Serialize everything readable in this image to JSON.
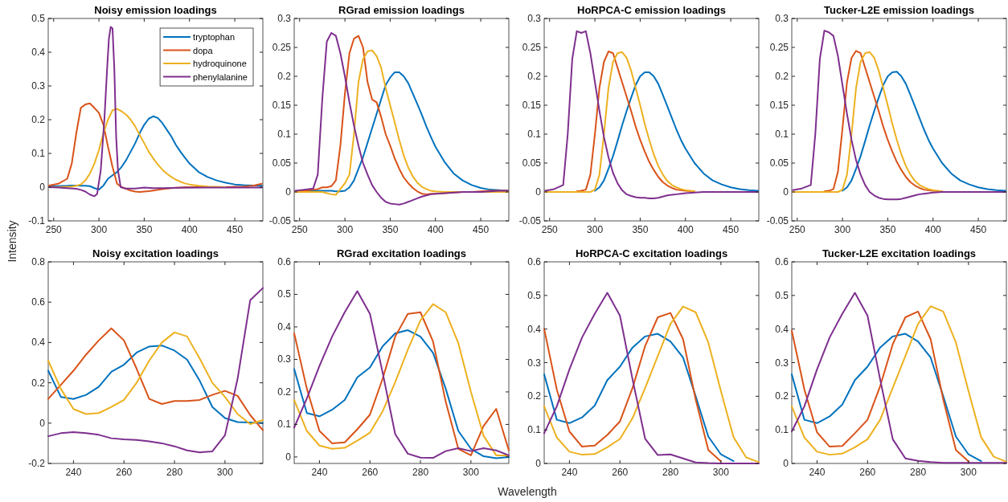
{
  "chart_data": [
    {
      "type": "line",
      "title": "Noisy emission loadings",
      "ylabel": "Intensity",
      "legend": "top right",
      "xlim": [
        244,
        481
      ],
      "xticks": [
        250,
        300,
        350,
        400,
        450
      ],
      "ylim": [
        -0.1,
        0.5
      ],
      "yticks": [
        -0.1,
        0,
        0.1,
        0.2,
        0.3,
        0.4,
        0.5
      ],
      "x": [
        245,
        255,
        265,
        270,
        275,
        280,
        285,
        290,
        295,
        300,
        305,
        310,
        315,
        320,
        325,
        330,
        335,
        340,
        345,
        350,
        355,
        360,
        365,
        370,
        375,
        380,
        385,
        390,
        395,
        400,
        410,
        420,
        430,
        440,
        450,
        460,
        470,
        480
      ],
      "series": [
        {
          "name": "tryptophan",
          "color": "#0072bd",
          "values": [
            0.002,
            0.003,
            0.004,
            0.005,
            0.005,
            0.004,
            0.004,
            0.003,
            -0.003,
            -0.007,
            0.005,
            0.025,
            0.035,
            0.045,
            0.06,
            0.08,
            0.105,
            0.13,
            0.16,
            0.185,
            0.203,
            0.21,
            0.205,
            0.19,
            0.17,
            0.15,
            0.125,
            0.105,
            0.087,
            0.07,
            0.045,
            0.03,
            0.02,
            0.013,
            0.008,
            0.006,
            0.005,
            0.004
          ]
        },
        {
          "name": "dopa",
          "color": "#d95319",
          "values": [
            0.005,
            0.01,
            0.025,
            0.07,
            0.16,
            0.235,
            0.245,
            0.248,
            0.235,
            0.22,
            0.185,
            0.12,
            0.06,
            0.01,
            0,
            -0.005,
            -0.01,
            -0.013,
            -0.014,
            -0.013,
            -0.012,
            -0.01,
            -0.008,
            -0.006,
            -0.004,
            -0.003,
            -0.002,
            -0.001,
            0,
            0,
            0,
            0,
            0,
            0,
            0.001,
            0.002,
            0.004,
            0.01
          ]
        },
        {
          "name": "hydroquinone",
          "color": "#edb120",
          "values": [
            0,
            0,
            0.001,
            0.002,
            0.004,
            0.008,
            0.02,
            0.04,
            0.07,
            0.11,
            0.16,
            0.2,
            0.228,
            0.232,
            0.225,
            0.215,
            0.2,
            0.18,
            0.155,
            0.13,
            0.105,
            0.085,
            0.067,
            0.052,
            0.04,
            0.03,
            0.022,
            0.016,
            0.011,
            0.008,
            0.004,
            0.002,
            0.001,
            0,
            null,
            null,
            null,
            null
          ]
        },
        {
          "name": "phenylalanine",
          "color": "#7e2f8e",
          "x": [
            245,
            255,
            265,
            275,
            280,
            285,
            290,
            295,
            298,
            302,
            306,
            309,
            311,
            313,
            315,
            317,
            319,
            321,
            324,
            330,
            340,
            350,
            360,
            370,
            390,
            420,
            450,
            480
          ],
          "values": [
            0,
            -0.001,
            -0.003,
            -0.005,
            -0.008,
            -0.013,
            -0.022,
            -0.027,
            -0.02,
            0.05,
            0.2,
            0.35,
            0.44,
            0.475,
            0.47,
            0.35,
            0.15,
            0.05,
            0,
            -0.004,
            -0.004,
            -0.001,
            -0.003,
            -0.003,
            -0.002,
            -0.001,
            -0.001,
            -0.001
          ]
        }
      ]
    },
    {
      "type": "line",
      "title": "RGrad emission loadings",
      "xlim": [
        244,
        481
      ],
      "xticks": [
        250,
        300,
        350,
        400,
        450
      ],
      "ylim": [
        -0.05,
        0.3
      ],
      "yticks": [
        -0.05,
        0,
        0.05,
        0.1,
        0.15,
        0.2,
        0.25,
        0.3
      ],
      "x": [
        245,
        255,
        265,
        270,
        275,
        280,
        285,
        290,
        295,
        300,
        305,
        310,
        315,
        320,
        325,
        330,
        335,
        340,
        345,
        350,
        355,
        360,
        365,
        370,
        375,
        380,
        385,
        390,
        395,
        400,
        410,
        420,
        430,
        440,
        450,
        460,
        470,
        480
      ],
      "series": [
        {
          "color": "#0072bd",
          "values": [
            0.001,
            0.002,
            0.002,
            0.002,
            0.002,
            0.002,
            0.002,
            0.001,
            0.001,
            0.002,
            0.008,
            0.02,
            0.04,
            0.06,
            0.085,
            0.11,
            0.135,
            0.16,
            0.185,
            0.198,
            0.207,
            0.207,
            0.2,
            0.188,
            0.17,
            0.152,
            0.133,
            0.113,
            0.095,
            0.078,
            0.052,
            0.032,
            0.02,
            0.012,
            0.007,
            0.004,
            0.003,
            0.002
          ]
        },
        {
          "color": "#d95319",
          "values": [
            0.001,
            0.002,
            0.004,
            0.005,
            0.008,
            0.008,
            0.01,
            0.02,
            0.08,
            0.17,
            0.24,
            0.265,
            0.27,
            0.25,
            0.19,
            0.16,
            0.155,
            0.13,
            0.1,
            0.08,
            0.058,
            0.04,
            0.025,
            0.015,
            0.007,
            0.001,
            -0.003,
            -0.004,
            -0.003,
            -0.003,
            -0.002,
            -0.001,
            0,
            0,
            0.001,
            0.002,
            0.002,
            0.002
          ]
        },
        {
          "color": "#edb120",
          "values": [
            0,
            0,
            0,
            0,
            0,
            -0.002,
            -0.004,
            -0.005,
            0.005,
            0.015,
            0.03,
            0.1,
            0.19,
            0.23,
            0.243,
            0.245,
            0.235,
            0.215,
            0.18,
            0.15,
            0.12,
            0.09,
            0.063,
            0.042,
            0.027,
            0.016,
            0.009,
            0.005,
            0.002,
            0.001,
            0,
            0,
            0,
            0,
            0,
            0,
            0,
            0
          ]
        },
        {
          "color": "#7e2f8e",
          "values": [
            0.002,
            0.004,
            0.006,
            0.03,
            0.16,
            0.26,
            0.275,
            0.27,
            0.24,
            0.2,
            0.155,
            0.115,
            0.08,
            0.05,
            0.03,
            0.012,
            0,
            -0.01,
            -0.017,
            -0.02,
            -0.021,
            -0.022,
            -0.02,
            -0.017,
            -0.014,
            -0.011,
            -0.008,
            -0.006,
            -0.004,
            -0.003,
            -0.002,
            -0.001,
            0,
            0,
            0,
            0.001,
            0.002,
            0.002
          ]
        }
      ]
    },
    {
      "type": "line",
      "title": "HoRPCA-C emission loadings",
      "xlim": [
        244,
        481
      ],
      "xticks": [
        250,
        300,
        350,
        400,
        450
      ],
      "ylim": [
        -0.05,
        0.3
      ],
      "yticks": [
        -0.05,
        0,
        0.05,
        0.1,
        0.15,
        0.2,
        0.25,
        0.3
      ],
      "x": [
        245,
        255,
        265,
        270,
        275,
        280,
        285,
        290,
        295,
        300,
        305,
        310,
        315,
        320,
        325,
        330,
        335,
        340,
        345,
        350,
        355,
        360,
        365,
        370,
        375,
        380,
        385,
        390,
        395,
        400,
        410,
        420,
        430,
        440,
        450,
        460,
        470,
        480
      ],
      "series": [
        {
          "color": "#0072bd",
          "values": [
            null,
            null,
            null,
            null,
            null,
            null,
            null,
            null,
            null,
            0.002,
            0.008,
            0.02,
            0.04,
            0.062,
            0.088,
            0.115,
            0.14,
            0.163,
            0.185,
            0.2,
            0.207,
            0.207,
            0.2,
            0.187,
            0.168,
            0.148,
            0.128,
            0.108,
            0.09,
            0.075,
            0.05,
            0.032,
            0.02,
            0.013,
            0.008,
            0.005,
            0.003,
            0.002
          ]
        },
        {
          "color": "#d95319",
          "values": [
            null,
            null,
            null,
            null,
            null,
            0.001,
            0.002,
            0.004,
            0.03,
            0.1,
            0.18,
            0.225,
            0.243,
            0.24,
            0.215,
            0.19,
            0.165,
            0.14,
            0.113,
            0.09,
            0.07,
            0.052,
            0.038,
            0.026,
            0.017,
            0.011,
            0.007,
            0.004,
            0.003,
            0.002,
            0.001,
            null,
            null,
            null,
            null,
            null,
            null,
            null
          ]
        },
        {
          "color": "#edb120",
          "values": [
            0,
            0,
            0,
            0,
            0,
            0,
            0,
            0,
            0,
            0.004,
            0.03,
            0.1,
            0.18,
            0.225,
            0.24,
            0.242,
            0.232,
            0.21,
            0.18,
            0.15,
            0.118,
            0.09,
            0.065,
            0.045,
            0.03,
            0.019,
            0.012,
            0.008,
            0.005,
            0.003,
            0.001,
            null,
            null,
            null,
            null,
            null,
            null,
            null
          ]
        },
        {
          "color": "#7e2f8e",
          "values": [
            0.002,
            0.005,
            0.012,
            0.1,
            0.23,
            0.278,
            0.275,
            0.278,
            0.24,
            0.19,
            0.14,
            0.095,
            0.06,
            0.033,
            0.015,
            0.003,
            -0.004,
            -0.007,
            -0.009,
            -0.01,
            -0.01,
            -0.011,
            -0.011,
            -0.01,
            -0.008,
            -0.006,
            -0.005,
            -0.004,
            -0.003,
            -0.002,
            -0.001,
            0,
            0,
            0,
            0,
            0,
            0,
            0
          ]
        }
      ]
    },
    {
      "type": "line",
      "title": "Tucker-L2E emission loadings",
      "xlim": [
        244,
        481
      ],
      "xticks": [
        250,
        300,
        350,
        400,
        450
      ],
      "ylim": [
        -0.05,
        0.3
      ],
      "yticks": [
        -0.05,
        0,
        0.05,
        0.1,
        0.15,
        0.2,
        0.25,
        0.3
      ],
      "x": [
        245,
        255,
        265,
        270,
        275,
        280,
        285,
        290,
        295,
        300,
        305,
        310,
        315,
        320,
        325,
        330,
        335,
        340,
        345,
        350,
        355,
        360,
        365,
        370,
        375,
        380,
        385,
        390,
        395,
        400,
        410,
        420,
        430,
        440,
        450,
        460,
        470,
        480
      ],
      "series": [
        {
          "color": "#0072bd",
          "values": [
            null,
            null,
            null,
            null,
            null,
            null,
            null,
            null,
            null,
            0.002,
            0.008,
            0.02,
            0.04,
            0.062,
            0.088,
            0.115,
            0.14,
            0.163,
            0.185,
            0.2,
            0.207,
            0.208,
            0.2,
            0.187,
            0.168,
            0.148,
            0.128,
            0.108,
            0.09,
            0.075,
            0.05,
            0.032,
            0.02,
            0.013,
            0.008,
            0.005,
            0.003,
            0.002
          ]
        },
        {
          "color": "#d95319",
          "values": [
            null,
            null,
            null,
            null,
            null,
            0.001,
            0.002,
            0.005,
            0.035,
            0.11,
            0.19,
            0.232,
            0.244,
            0.24,
            0.215,
            0.19,
            0.165,
            0.14,
            0.113,
            0.09,
            0.07,
            0.052,
            0.038,
            0.026,
            0.017,
            0.011,
            0.007,
            0.004,
            0.003,
            0.002,
            0.001,
            null,
            null,
            null,
            null,
            null,
            null,
            null
          ]
        },
        {
          "color": "#edb120",
          "values": [
            0,
            0,
            0,
            0,
            0,
            0,
            0,
            0,
            0,
            0.004,
            0.03,
            0.1,
            0.18,
            0.225,
            0.24,
            0.242,
            0.232,
            0.21,
            0.18,
            0.15,
            0.118,
            0.09,
            0.065,
            0.045,
            0.03,
            0.019,
            0.012,
            0.008,
            0.005,
            0.003,
            0.001,
            null,
            null,
            null,
            null,
            null,
            null,
            null
          ]
        },
        {
          "color": "#7e2f8e",
          "values": [
            0.003,
            0.006,
            0.012,
            0.1,
            0.23,
            0.279,
            0.276,
            0.27,
            0.235,
            0.185,
            0.135,
            0.09,
            0.055,
            0.03,
            0.012,
            0,
            -0.006,
            -0.01,
            -0.012,
            -0.013,
            -0.013,
            -0.013,
            -0.012,
            -0.01,
            -0.008,
            -0.006,
            -0.004,
            -0.003,
            -0.002,
            -0.001,
            0,
            0,
            0,
            0,
            0,
            0,
            0,
            0
          ]
        }
      ]
    },
    {
      "type": "line",
      "title": "Noisy excitation loadings",
      "xlim": [
        230,
        315
      ],
      "xticks": [
        240,
        260,
        280,
        300
      ],
      "ylim": [
        -0.2,
        0.8
      ],
      "yticks": [
        -0.2,
        0,
        0.2,
        0.4,
        0.6,
        0.8
      ],
      "x": [
        230,
        235,
        240,
        245,
        250,
        255,
        260,
        265,
        270,
        275,
        280,
        285,
        290,
        295,
        300,
        305,
        310,
        315
      ],
      "series": [
        {
          "color": "#0072bd",
          "values": [
            0.26,
            0.13,
            0.12,
            0.14,
            0.18,
            0.255,
            0.29,
            0.35,
            0.38,
            0.385,
            0.36,
            0.315,
            0.21,
            0.08,
            0.025,
            0.005,
            0.003,
            0
          ]
        },
        {
          "color": "#d95319",
          "values": [
            0.12,
            0.19,
            0.26,
            0.34,
            0.41,
            0.47,
            0.41,
            0.27,
            0.12,
            0.095,
            0.11,
            0.11,
            0.115,
            0.14,
            0.16,
            0.135,
            0.04,
            -0.035
          ]
        },
        {
          "color": "#edb120",
          "values": [
            0.31,
            0.17,
            0.07,
            0.045,
            0.05,
            0.08,
            0.115,
            0.2,
            0.31,
            0.4,
            0.45,
            0.43,
            0.32,
            0.2,
            0.13,
            0.045,
            -0.005,
            0.015
          ]
        },
        {
          "color": "#7e2f8e",
          "values": [
            -0.065,
            -0.05,
            -0.045,
            -0.05,
            -0.058,
            -0.075,
            -0.08,
            -0.083,
            -0.09,
            -0.1,
            -0.115,
            -0.135,
            -0.145,
            -0.14,
            -0.06,
            0.22,
            0.61,
            0.67
          ]
        }
      ]
    },
    {
      "type": "line",
      "title": "RGrad excitation loadings",
      "xlabel": "Wavelength",
      "xlim": [
        230,
        315
      ],
      "xticks": [
        240,
        260,
        280,
        300
      ],
      "ylim": [
        -0.02,
        0.6
      ],
      "yticks": [
        0,
        0.1,
        0.2,
        0.3,
        0.4,
        0.5,
        0.6
      ],
      "x": [
        230,
        235,
        240,
        245,
        250,
        255,
        260,
        265,
        270,
        275,
        280,
        285,
        290,
        295,
        300,
        305,
        310,
        315
      ],
      "series": [
        {
          "color": "#0072bd",
          "values": [
            0.27,
            0.135,
            0.125,
            0.145,
            0.175,
            0.245,
            0.275,
            0.34,
            0.38,
            0.39,
            0.37,
            0.32,
            0.21,
            0.08,
            0.025,
            0.002,
            -0.004,
            0
          ]
        },
        {
          "color": "#d95319",
          "values": [
            0.38,
            0.21,
            0.08,
            0.042,
            0.045,
            0.085,
            0.13,
            0.24,
            0.37,
            0.44,
            0.445,
            0.355,
            0.17,
            0.025,
            0.005,
            0.095,
            0.148,
            0.02
          ]
        },
        {
          "color": "#edb120",
          "values": [
            0.175,
            0.08,
            0.035,
            0.025,
            0.028,
            0.05,
            0.075,
            0.14,
            0.23,
            0.33,
            0.42,
            0.47,
            0.445,
            0.35,
            0.2,
            0.065,
            0.005,
            0.005
          ]
        },
        {
          "color": "#7e2f8e",
          "values": [
            0.09,
            0.18,
            0.28,
            0.37,
            0.445,
            0.51,
            0.44,
            0.26,
            0.07,
            0.01,
            -0.002,
            -0.003,
            0.018,
            0.027,
            0.018,
            0.027,
            0.02,
            0.005
          ]
        }
      ]
    },
    {
      "type": "line",
      "title": "HoRPCA-C excitation loadings",
      "xlim": [
        230,
        315
      ],
      "xticks": [
        240,
        260,
        280,
        300
      ],
      "ylim": [
        0,
        0.6
      ],
      "yticks": [
        0,
        0.1,
        0.2,
        0.3,
        0.4,
        0.5,
        0.6
      ],
      "x": [
        230,
        235,
        240,
        245,
        250,
        255,
        260,
        265,
        270,
        275,
        280,
        285,
        290,
        295,
        300,
        305,
        310,
        315
      ],
      "series": [
        {
          "color": "#0072bd",
          "values": [
            0.265,
            0.13,
            0.12,
            0.137,
            0.172,
            0.248,
            0.288,
            0.345,
            0.378,
            0.386,
            0.363,
            0.315,
            0.2,
            0.08,
            0.027,
            0.007,
            null,
            null
          ]
        },
        {
          "color": "#d95319",
          "values": [
            0.4,
            0.22,
            0.095,
            0.05,
            0.053,
            0.085,
            0.125,
            0.225,
            0.35,
            0.435,
            0.448,
            0.37,
            0.19,
            0.04,
            0.006,
            null,
            null,
            null
          ]
        },
        {
          "color": "#edb120",
          "values": [
            0.17,
            0.077,
            0.035,
            0.026,
            0.028,
            0.048,
            0.073,
            0.135,
            0.225,
            0.32,
            0.415,
            0.467,
            0.45,
            0.36,
            0.215,
            0.078,
            0.018,
            0.004
          ]
        },
        {
          "color": "#7e2f8e",
          "values": [
            0.09,
            0.17,
            0.28,
            0.375,
            0.445,
            0.508,
            0.44,
            0.25,
            0.073,
            0.025,
            0.027,
            0.015,
            0.003,
            0.001,
            0,
            0,
            0,
            0
          ]
        }
      ]
    },
    {
      "type": "line",
      "title": "Tucker-L2E excitation loadings",
      "xlim": [
        230,
        315
      ],
      "xticks": [
        240,
        260,
        280,
        300
      ],
      "ylim": [
        0,
        0.6
      ],
      "yticks": [
        0,
        0.1,
        0.2,
        0.3,
        0.4,
        0.5,
        0.6
      ],
      "x": [
        230,
        235,
        240,
        245,
        250,
        255,
        260,
        265,
        270,
        275,
        280,
        285,
        290,
        295,
        300,
        305,
        310,
        315
      ],
      "series": [
        {
          "color": "#0072bd",
          "values": [
            0.265,
            0.13,
            0.12,
            0.14,
            0.175,
            0.248,
            0.288,
            0.345,
            0.378,
            0.386,
            0.363,
            0.315,
            0.2,
            0.08,
            0.027,
            0.007,
            null,
            null
          ]
        },
        {
          "color": "#d95319",
          "values": [
            0.395,
            0.22,
            0.093,
            0.05,
            0.052,
            0.09,
            0.13,
            0.23,
            0.355,
            0.435,
            0.452,
            0.37,
            0.19,
            0.04,
            0.006,
            null,
            null,
            null
          ]
        },
        {
          "color": "#edb120",
          "values": [
            0.17,
            0.077,
            0.035,
            0.026,
            0.029,
            0.048,
            0.072,
            0.13,
            0.225,
            0.32,
            0.415,
            0.468,
            0.452,
            0.36,
            0.215,
            0.078,
            0.02,
            0.005
          ]
        },
        {
          "color": "#7e2f8e",
          "values": [
            0.095,
            0.17,
            0.28,
            0.375,
            0.445,
            0.508,
            0.44,
            0.25,
            0.072,
            0.015,
            0.008,
            0.004,
            0.002,
            0.002,
            0.002,
            0.002,
            0.002,
            0.002
          ]
        }
      ]
    }
  ]
}
